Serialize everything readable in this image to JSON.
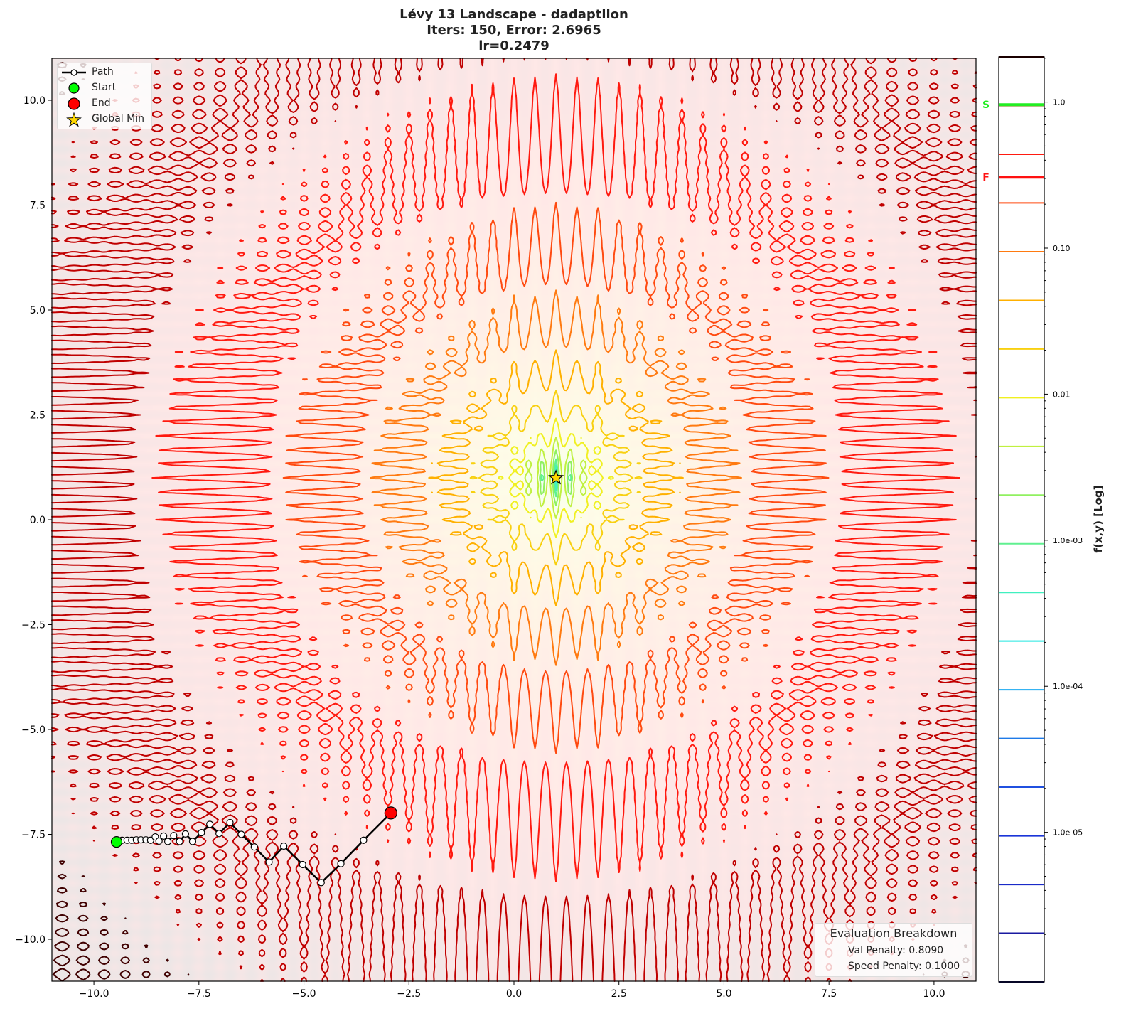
{
  "chart_data": {
    "type": "contour",
    "title_lines": [
      "Lévy 13 Landscape - dadaptlion",
      "Iters: 150, Error: 2.6965",
      "lr=0.2479"
    ],
    "xlabel": "",
    "ylabel": "",
    "xlim": [
      -11,
      11
    ],
    "ylim": [
      -11,
      11
    ],
    "x_ticks": [
      -10,
      -7.5,
      -5,
      -2.5,
      0,
      2.5,
      5,
      7.5,
      10
    ],
    "x_tick_labels": [
      "−10.0",
      "−7.5",
      "−5.0",
      "−2.5",
      "0.0",
      "2.5",
      "5.0",
      "7.5",
      "10.0"
    ],
    "y_ticks": [
      10,
      7.5,
      5,
      2.5,
      0,
      -2.5,
      -5,
      -7.5,
      -10
    ],
    "y_tick_labels": [
      "10.0",
      "7.5",
      "5.0",
      "2.5",
      "0.0",
      "−2.5",
      "−5.0",
      "−7.5",
      "−10.0"
    ],
    "grid": false,
    "function": "Lévy 13",
    "contour_levels": [
      9.46e-07,
      2.04e-06,
      4.39e-06,
      9.46e-06,
      2.04e-05,
      4.39e-05,
      9.46e-05,
      0.000204,
      0.000439,
      0.000946,
      0.00204,
      0.00439,
      0.00946,
      0.0204,
      0.0439,
      0.0946,
      0.204,
      0.439,
      0.946,
      2.04
    ],
    "contour_colors": [
      "#101060",
      "#1a1aa0",
      "#1a2ac8",
      "#1a35d8",
      "#2050e0",
      "#1e7ae8",
      "#1aa8f0",
      "#20e8e0",
      "#40f0c0",
      "#60f090",
      "#90f060",
      "#c0f040",
      "#f0f020",
      "#f8d010",
      "#ffb000",
      "#ff7a10",
      "#ff4a10",
      "#ff1a10",
      "#c00000",
      "#400000"
    ],
    "path": {
      "x": [
        -9.46,
        -9.33,
        -9.21,
        -9.1,
        -8.99,
        -8.88,
        -8.76,
        -8.65,
        -8.54,
        -8.45,
        -8.34,
        -8.24,
        -8.1,
        -7.96,
        -7.82,
        -7.65,
        -7.44,
        -7.24,
        -7.02,
        -6.76,
        -6.49,
        -6.18,
        -5.83,
        -5.48,
        -5.03,
        -4.59,
        -4.12,
        -3.58,
        -2.93
      ],
      "y": [
        -7.68,
        -7.64,
        -7.64,
        -7.64,
        -7.63,
        -7.63,
        -7.63,
        -7.64,
        -7.56,
        -7.66,
        -7.54,
        -7.67,
        -7.53,
        -7.67,
        -7.49,
        -7.67,
        -7.46,
        -7.26,
        -7.48,
        -7.22,
        -7.5,
        -7.8,
        -8.16,
        -7.78,
        -8.22,
        -8.65,
        -8.2,
        -7.64,
        -6.99
      ]
    },
    "start": {
      "x": -9.46,
      "y": -7.68
    },
    "end": {
      "x": -2.93,
      "y": -6.99
    },
    "global_min": {
      "x": 1,
      "y": 1
    },
    "legend": {
      "placement": "top-left",
      "entries": [
        "Path",
        "Start",
        "End",
        "Global Min"
      ]
    },
    "colorbar": {
      "label": "f(x,y) [Log]",
      "scale": "log",
      "ticks": [
        1.0,
        0.1,
        0.01,
        0.001,
        0.0001,
        1e-05
      ],
      "tick_labels": [
        "1.0",
        "0.10",
        "0.01",
        "1.0e-03",
        "1.0e-04",
        "1.0e-05"
      ],
      "markers": [
        {
          "label": "S",
          "value": 0.96,
          "color": "#22ee22"
        },
        {
          "label": "F",
          "value": 0.306,
          "color": "#ff1111"
        }
      ]
    },
    "evaluation": {
      "title": "Evaluation Breakdown",
      "val_penalty": "Val Penalty: 0.8090",
      "speed_penalty": "Speed Penalty: 0.1000"
    },
    "colors": {
      "start": "#00ff00",
      "end": "#ff0000",
      "star": "#ffd700",
      "path": "#000000"
    }
  }
}
